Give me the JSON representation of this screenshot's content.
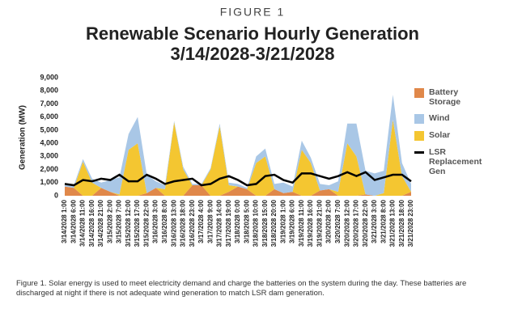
{
  "figure_label": "FIGURE 1",
  "caption": "Figure 1. Solar energy is used to meet electricity demand and charge the batteries on the system during the day. These batteries are discharged at night if there is not adequate wind generation to match LSR dam generation.",
  "chart_data": {
    "type": "stacked-area",
    "title_lines": [
      "Renewable Scenario Hourly Generation",
      "3/14/2028-3/21/2028"
    ],
    "y_label": "Generation (MW)",
    "categories": [
      "3/14/2028 1:00",
      "3/14/2028 6:00",
      "3/14/2028 11:00",
      "3/14/2028 16:00",
      "3/14/2028 21:00",
      "3/15/2028 2:00",
      "3/15/2028 7:00",
      "3/15/2028 12:00",
      "3/15/2028 17:00",
      "3/15/2028 22:00",
      "3/16/2028 3:00",
      "3/16/2028 8:00",
      "3/16/2028 13:00",
      "3/16/2028 18:00",
      "3/16/2028 23:00",
      "3/17/2028 4:00",
      "3/17/2028 9:00",
      "3/17/2028 14:00",
      "3/17/2028 19:00",
      "3/18/2028 0:00",
      "3/18/2028 5:00",
      "3/18/2028 10:00",
      "3/18/2028 15:00",
      "3/18/2028 20:00",
      "3/19/2028 1:00",
      "3/19/2028 6:00",
      "3/19/2028 11:00",
      "3/19/2028 16:00",
      "3/19/2028 21:00",
      "3/20/2028 2:00",
      "3/20/2028 7:00",
      "3/20/2028 12:00",
      "3/20/2028 17:00",
      "3/20/2028 22:00",
      "3/21/2028 3:00",
      "3/21/2028 8:00",
      "3/21/2028 13:00",
      "3/21/2028 18:00",
      "3/21/2028 23:00"
    ],
    "series": [
      {
        "name": "Battery Storage",
        "color": "#e0884a",
        "values": [
          700,
          600,
          0,
          0,
          600,
          300,
          0,
          0,
          0,
          200,
          600,
          0,
          0,
          0,
          800,
          800,
          0,
          0,
          300,
          700,
          500,
          0,
          0,
          500,
          200,
          300,
          0,
          0,
          400,
          500,
          0,
          0,
          0,
          100,
          0,
          0,
          0,
          0,
          300
        ]
      },
      {
        "name": "Solar",
        "color": "#f4c631",
        "values": [
          0,
          0,
          2600,
          1000,
          0,
          0,
          100,
          3500,
          4000,
          0,
          0,
          500,
          5600,
          2000,
          0,
          0,
          2000,
          5300,
          500,
          0,
          0,
          2500,
          3000,
          0,
          0,
          0,
          3500,
          2500,
          0,
          0,
          300,
          4000,
          3000,
          0,
          0,
          200,
          5800,
          1500,
          0
        ]
      },
      {
        "name": "Wind",
        "color": "#a9c7e6",
        "values": [
          100,
          200,
          200,
          300,
          400,
          900,
          1300,
          1200,
          2000,
          1400,
          500,
          300,
          100,
          200,
          100,
          100,
          100,
          200,
          200,
          200,
          100,
          500,
          600,
          400,
          800,
          400,
          700,
          400,
          500,
          300,
          800,
          1500,
          2500,
          1800,
          1700,
          1700,
          1900,
          1000,
          600
        ]
      },
      {
        "name": "LSR Replacement Gen",
        "color": "#000000",
        "line": true,
        "values": [
          900,
          800,
          1200,
          1100,
          1300,
          1200,
          1600,
          1100,
          1100,
          1600,
          1300,
          900,
          1100,
          1200,
          1300,
          800,
          900,
          1300,
          1500,
          1200,
          800,
          900,
          1500,
          1600,
          1200,
          1000,
          1700,
          1700,
          1500,
          1300,
          1500,
          1800,
          1500,
          1800,
          1200,
          1400,
          1600,
          1600,
          1100
        ]
      }
    ],
    "legend_order": [
      0,
      2,
      1,
      3
    ],
    "ylim": [
      0,
      9000
    ],
    "yticks": [
      0,
      {
        "value": 1000,
        "label": "1,000"
      },
      {
        "value": 2000,
        "label": "2,000"
      },
      {
        "value": 3000,
        "label": "3,000"
      },
      {
        "value": 4000,
        "label": "4,000"
      },
      {
        "value": 5000,
        "label": "5,000"
      },
      {
        "value": 6000,
        "label": "6,000"
      },
      {
        "value": 7000,
        "label": "7,000"
      },
      {
        "value": 8000,
        "label": "8,000"
      },
      {
        "value": 9000,
        "label": "9,000"
      }
    ]
  }
}
